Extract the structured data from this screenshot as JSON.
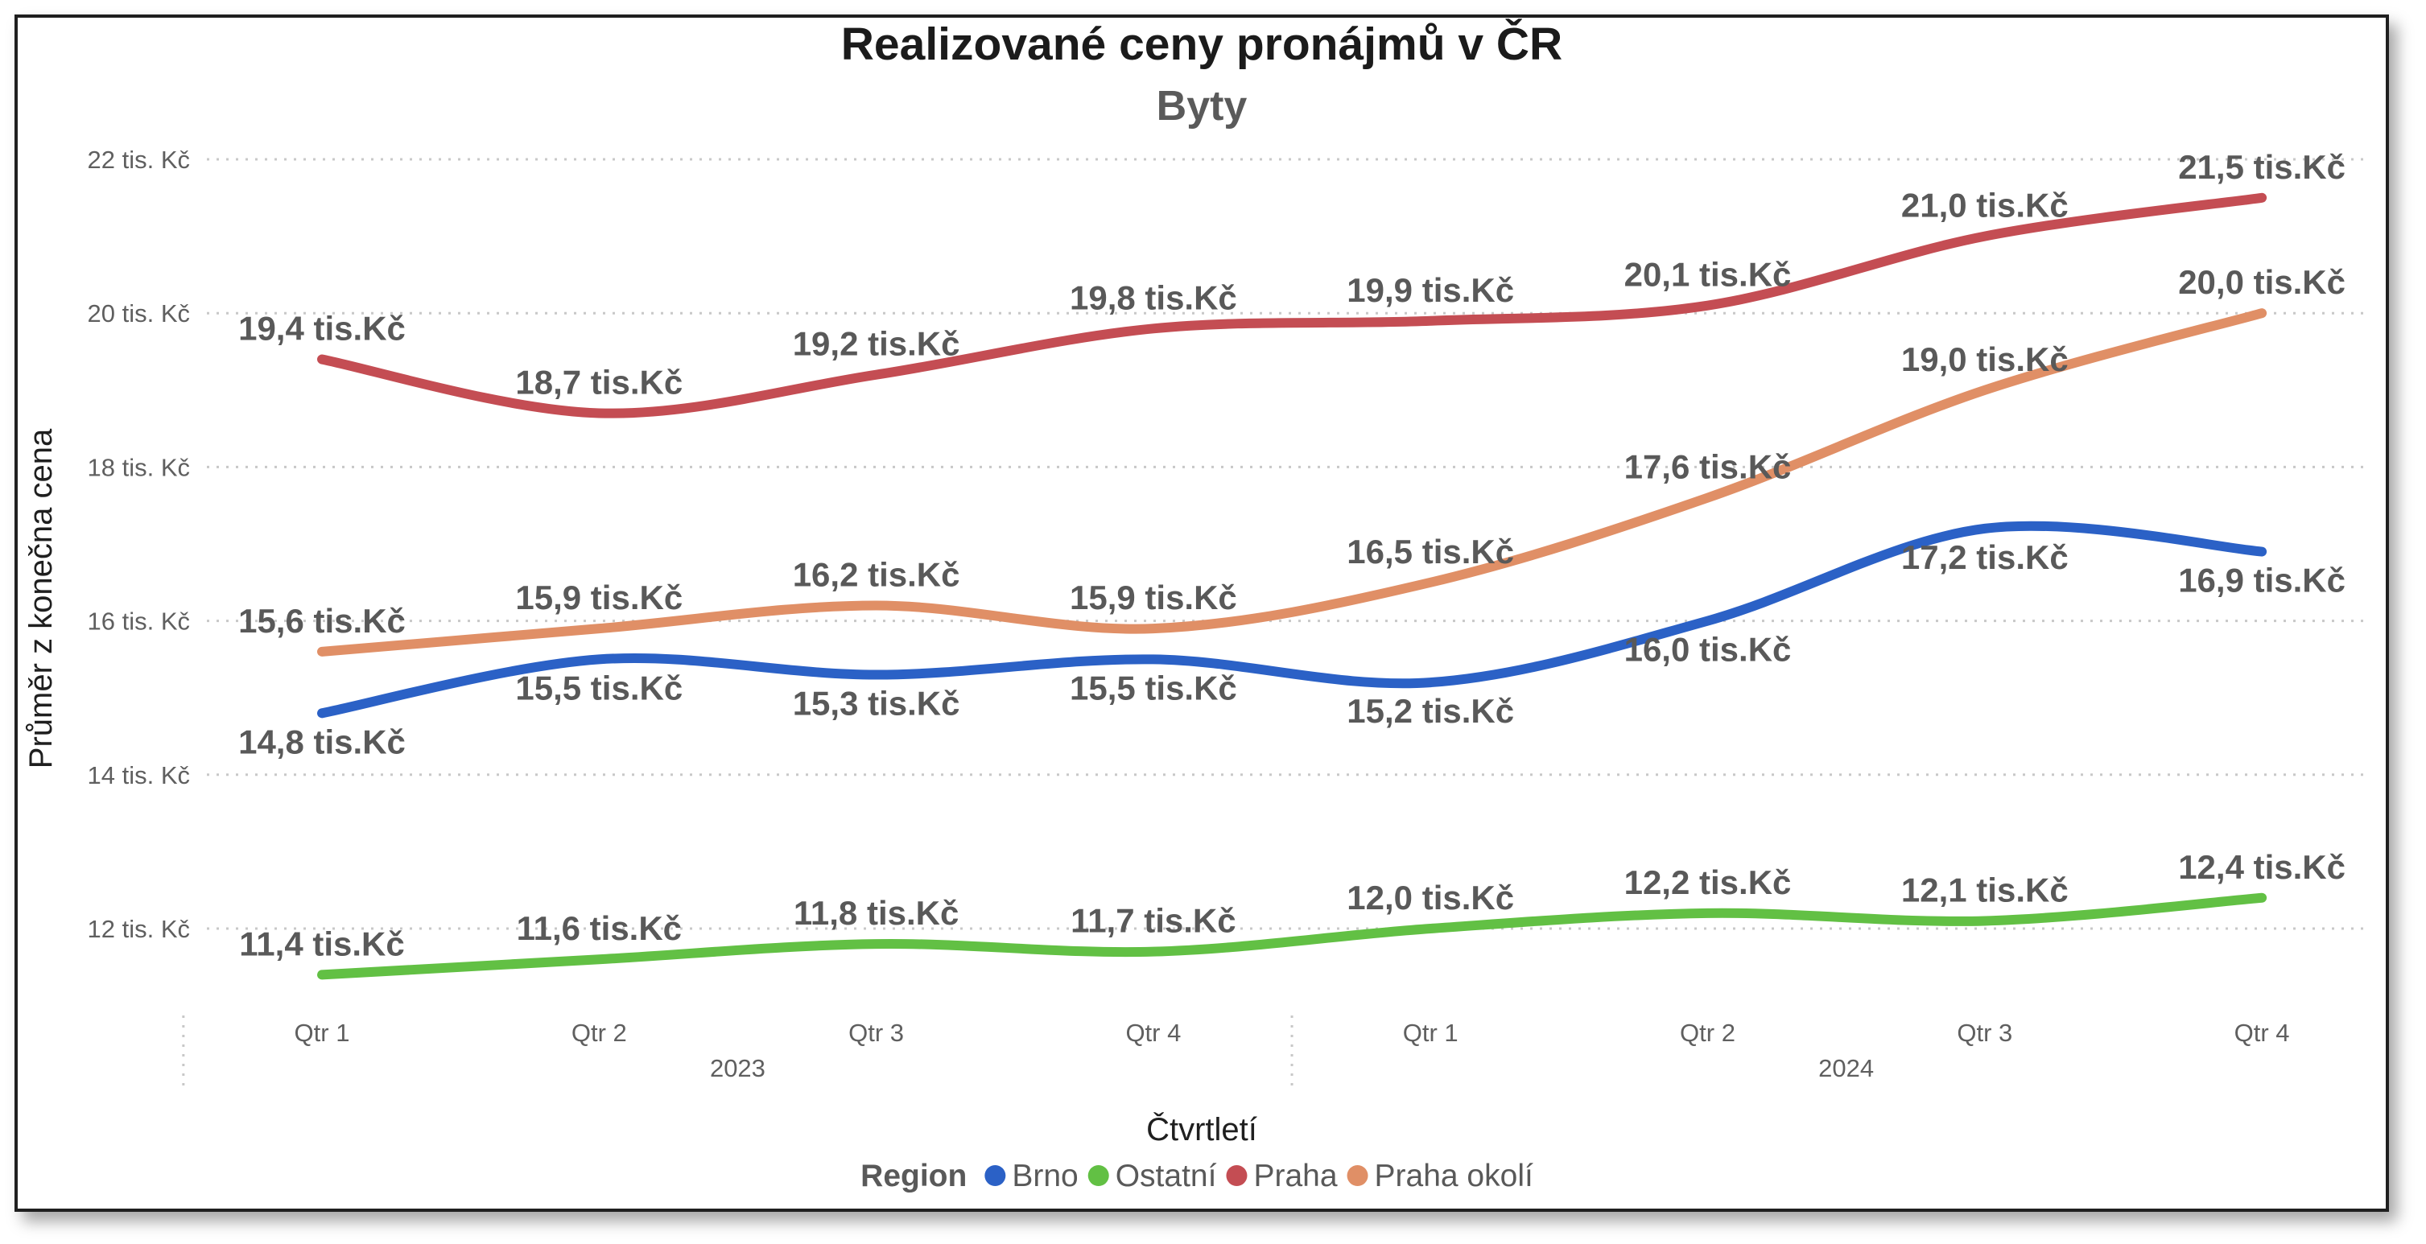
{
  "chart_data": {
    "type": "line",
    "title": "Realizované ceny pronájmů v ČR",
    "subtitle": "Byty",
    "ylabel": "Průměr z konečna cena",
    "xlabel": "Čtvrtletí",
    "ylim": [
      10.75,
      22
    ],
    "yticks": [
      {
        "value": 22,
        "label": "22 tis. Kč"
      },
      {
        "value": 20,
        "label": "20 tis. Kč"
      },
      {
        "value": 18,
        "label": "18 tis. Kč"
      },
      {
        "value": 16,
        "label": "16 tis. Kč"
      },
      {
        "value": 14,
        "label": "14 tis. Kč"
      },
      {
        "value": 12,
        "label": "12 tis. Kč"
      }
    ],
    "categories": [
      "Qtr 1",
      "Qtr 2",
      "Qtr 3",
      "Qtr 4",
      "Qtr 1",
      "Qtr 2",
      "Qtr 3",
      "Qtr 4"
    ],
    "year_groups": [
      {
        "label": "2023",
        "span": 4
      },
      {
        "label": "2024",
        "span": 4
      }
    ],
    "grid": "horizontal dotted",
    "legend": {
      "title": "Region",
      "placement": "bottom-center"
    },
    "series": [
      {
        "name": "Brno",
        "color": "#2b61c6",
        "values": [
          14.8,
          15.5,
          15.3,
          15.5,
          15.2,
          16.0,
          17.2,
          16.9
        ],
        "labels": [
          "14,8 tis.Kč",
          "15,5 tis.Kč",
          "15,3 tis.Kč",
          "15,5 tis.Kč",
          "15,2 tis.Kč",
          "16,0 tis.Kč",
          "17,2 tis.Kč",
          "16,9 tis.Kč"
        ],
        "label_pos": [
          "below",
          "below",
          "below",
          "below",
          "below",
          "below",
          "below",
          "below"
        ]
      },
      {
        "name": "Ostatní",
        "color": "#62c044",
        "values": [
          11.4,
          11.6,
          11.8,
          11.7,
          12.0,
          12.2,
          12.1,
          12.4
        ],
        "labels": [
          "11,4 tis.Kč",
          "11,6 tis.Kč",
          "11,8 tis.Kč",
          "11,7 tis.Kč",
          "12,0 tis.Kč",
          "12,2 tis.Kč",
          "12,1 tis.Kč",
          "12,4 tis.Kč"
        ],
        "label_pos": [
          "above",
          "above",
          "above",
          "above",
          "above",
          "above",
          "above",
          "above"
        ]
      },
      {
        "name": "Praha",
        "color": "#c44d53",
        "values": [
          19.4,
          18.7,
          19.2,
          19.8,
          19.9,
          20.1,
          21.0,
          21.5
        ],
        "labels": [
          "19,4 tis.Kč",
          "18,7 tis.Kč",
          "19,2 tis.Kč",
          "19,8 tis.Kč",
          "19,9 tis.Kč",
          "20,1 tis.Kč",
          "21,0 tis.Kč",
          "21,5 tis.Kč"
        ],
        "label_pos": [
          "above",
          "above",
          "above",
          "above",
          "above",
          "above",
          "above",
          "above"
        ]
      },
      {
        "name": "Praha okolí",
        "color": "#e08f66",
        "values": [
          15.6,
          15.9,
          16.2,
          15.9,
          16.5,
          17.6,
          19.0,
          20.0
        ],
        "labels": [
          "15,6 tis.Kč",
          "15,9 tis.Kč",
          "16,2 tis.Kč",
          "15,9 tis.Kč",
          "16,5 tis.Kč",
          "17,6 tis.Kč",
          "19,0 tis.Kč",
          "20,0 tis.Kč"
        ],
        "label_pos": [
          "above",
          "above",
          "above",
          "above",
          "above",
          "above",
          "above",
          "above"
        ]
      }
    ]
  }
}
